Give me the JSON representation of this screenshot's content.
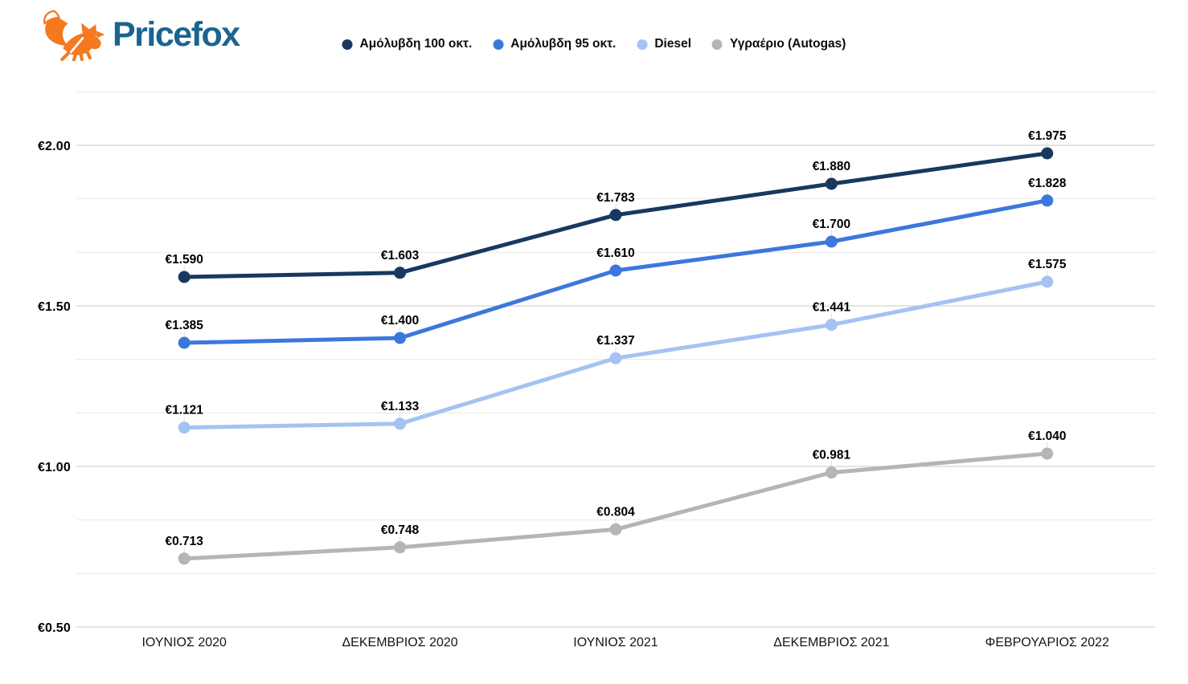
{
  "header": {
    "brand": "Pricefox"
  },
  "chart_data": {
    "type": "line",
    "title": "",
    "currency_prefix": "€",
    "categories": [
      "ΙΟΥΝΙΟΣ 2020",
      "ΔΕΚΕΜΒΡΙΟΣ 2020",
      "ΙΟΥΝΙΟΣ 2021",
      "ΔΕΚΕΜΒΡΙΟΣ 2021",
      "ΦΕΒΡΟΥΑΡΙΟΣ 2022"
    ],
    "series": [
      {
        "name": "Αμόλυβδη 100 οκτ.",
        "color": "#17395f",
        "values": [
          1.59,
          1.603,
          1.783,
          1.88,
          1.975
        ]
      },
      {
        "name": "Αμόλυβδη 95 οκτ.",
        "color": "#3c78dc",
        "values": [
          1.385,
          1.4,
          1.61,
          1.7,
          1.828
        ]
      },
      {
        "name": "Diesel",
        "color": "#a4c3f3",
        "values": [
          1.121,
          1.133,
          1.337,
          1.441,
          1.575
        ]
      },
      {
        "name": "Υγραέριο (Autogas)",
        "color": "#b5b5b5",
        "values": [
          0.713,
          0.748,
          0.804,
          0.981,
          1.04
        ]
      }
    ],
    "ylim": [
      0.5,
      2.1667
    ],
    "y_major_ticks": [
      0.5,
      1.0,
      1.5,
      2.0
    ],
    "y_minor_divisions_per_major": 3,
    "grid": true,
    "legend_position": "top",
    "value_label_decimals": 3,
    "tick_label_decimals": 2
  },
  "colors": {
    "grid_major": "#c9c9c9",
    "grid_minor": "#e8e8e8",
    "leader_tick": "#dcdcdc",
    "brand_text": "#1b648f",
    "fox_orange": "#f4791f"
  }
}
